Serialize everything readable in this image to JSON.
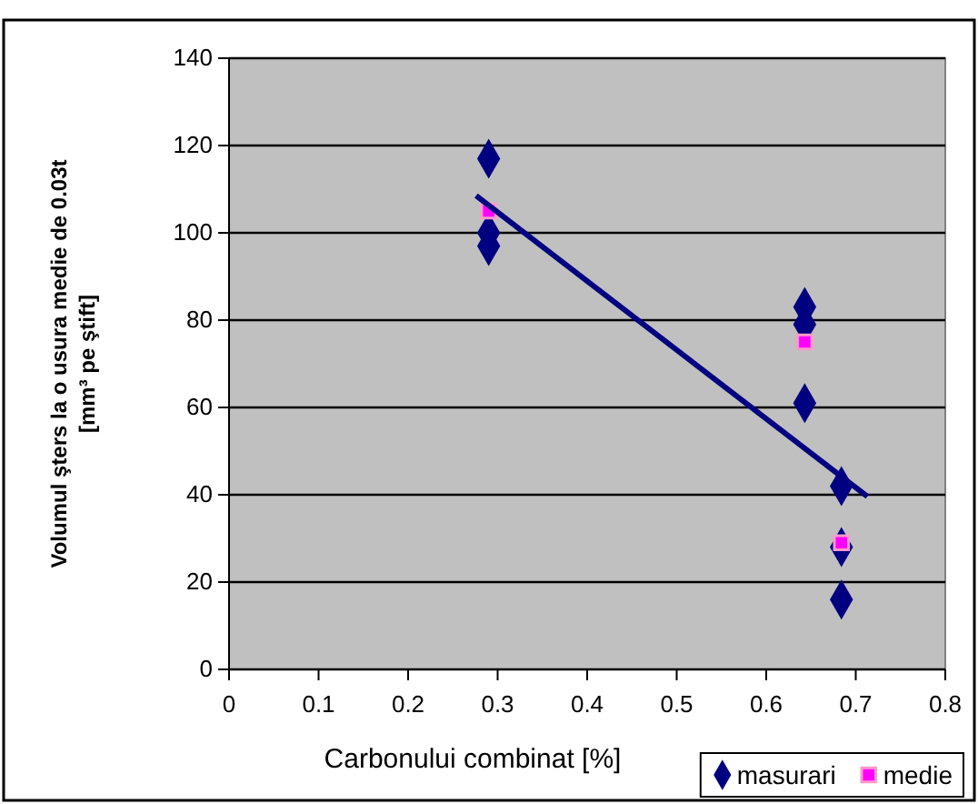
{
  "chart_data": {
    "type": "scatter",
    "xlabel": "Carbonului combinat [%]",
    "ylabel": "Volumul şters la o usura medie de 0.03t [mm³ pe ştift]",
    "xlim": [
      0,
      0.8
    ],
    "xticks": [
      0,
      0.1,
      0.2,
      0.3,
      0.4,
      0.5,
      0.6,
      0.7,
      0.8
    ],
    "ylim": [
      0,
      140
    ],
    "yticks": [
      0,
      20,
      40,
      60,
      80,
      100,
      120,
      140
    ],
    "grid": "y",
    "legend": "bottom right",
    "series": [
      {
        "name": "masurari",
        "color": "#000080",
        "marker": "diamond",
        "x": [
          0.29,
          0.29,
          0.29,
          0.643,
          0.643,
          0.643,
          0.684,
          0.684,
          0.684
        ],
        "values": [
          117,
          100,
          97,
          83,
          79,
          61,
          42,
          28,
          16
        ]
      },
      {
        "name": "medie",
        "color": "#ff00ff",
        "marker": "square",
        "x": [
          0.29,
          0.643,
          0.684
        ],
        "values": [
          105,
          75,
          29
        ]
      },
      {
        "type": "line",
        "color": "#000080",
        "marker": "none",
        "x": [
          0.276,
          0.713
        ],
        "values": [
          108.5,
          39.6
        ]
      }
    ]
  }
}
